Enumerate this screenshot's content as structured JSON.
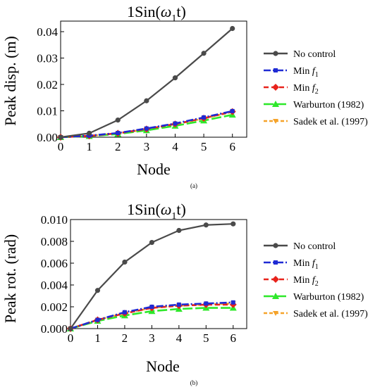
{
  "chart_data": [
    {
      "type": "line",
      "title": "1Sin(ω₁t)",
      "title_base": "1Sin(",
      "title_omega": "ω",
      "title_sub": "1",
      "title_end": "t)",
      "xlabel": "Node",
      "ylabel": "Peak disp. (m)",
      "panel_label": "(a)",
      "x": [
        0,
        1,
        2,
        3,
        4,
        5,
        6
      ],
      "xlim": [
        0,
        6.5
      ],
      "ylim": [
        0,
        0.044
      ],
      "x_ticks": [
        "0",
        "1",
        "2",
        "3",
        "4",
        "5",
        "6"
      ],
      "y_ticks": [
        {
          "value": 0,
          "label": "0.00"
        },
        {
          "value": 0.01,
          "label": "0.01"
        },
        {
          "value": 0.02,
          "label": "0.02"
        },
        {
          "value": 0.03,
          "label": "0.03"
        },
        {
          "value": 0.04,
          "label": "0.04"
        }
      ],
      "legend_position": "right",
      "series": [
        {
          "name": "No control",
          "color": "#4a4a4a",
          "dash": "",
          "marker": "circle",
          "values": [
            0,
            0.0015,
            0.0065,
            0.0138,
            0.0225,
            0.0318,
            0.0412
          ]
        },
        {
          "name": "Min f1",
          "label_base": "Min ",
          "label_italic": "f",
          "label_sub": "1",
          "color": "#1f2bd4",
          "dash": "10,3,2,3",
          "marker": "square",
          "values": [
            0,
            0.0006,
            0.0016,
            0.0033,
            0.0052,
            0.0075,
            0.0099
          ]
        },
        {
          "name": "Min f2",
          "label_base": "Min ",
          "label_italic": "f",
          "label_sub": "2",
          "color": "#e8231c",
          "dash": "7,4",
          "marker": "diamond",
          "values": [
            0,
            0.0005,
            0.0015,
            0.0031,
            0.005,
            0.0072,
            0.0097
          ]
        },
        {
          "name": "Warburton (1982)",
          "color": "#2ee82a",
          "dash": "14,4",
          "marker": "triangle",
          "values": [
            0,
            0.0004,
            0.0012,
            0.0026,
            0.0043,
            0.0063,
            0.0085
          ]
        },
        {
          "name": "Sadek et al. (1997)",
          "color": "#f5a32a",
          "dash": "5,3",
          "marker": "down-triangle",
          "values": [
            0,
            0.0005,
            0.0014,
            0.003,
            0.0049,
            0.0071,
            0.0096
          ]
        }
      ]
    },
    {
      "type": "line",
      "title": "1Sin(ω₁t)",
      "title_base": "1Sin(",
      "title_omega": "ω",
      "title_sub": "1",
      "title_end": "t)",
      "xlabel": "Node",
      "ylabel": "Peak rot. (rad)",
      "panel_label": "(b)",
      "x": [
        0,
        1,
        2,
        3,
        4,
        5,
        6
      ],
      "xlim": [
        0,
        6.5
      ],
      "ylim": [
        0,
        0.01
      ],
      "x_ticks": [
        "0",
        "1",
        "2",
        "3",
        "4",
        "5",
        "6"
      ],
      "y_ticks": [
        {
          "value": 0,
          "label": "0.000"
        },
        {
          "value": 0.002,
          "label": "0.002"
        },
        {
          "value": 0.004,
          "label": "0.004"
        },
        {
          "value": 0.006,
          "label": "0.006"
        },
        {
          "value": 0.008,
          "label": "0.008"
        },
        {
          "value": 0.01,
          "label": "0.010"
        }
      ],
      "legend_position": "right",
      "series": [
        {
          "name": "No control",
          "color": "#4a4a4a",
          "dash": "",
          "marker": "circle",
          "values": [
            0,
            0.0035,
            0.0061,
            0.0079,
            0.009,
            0.0095,
            0.0096
          ]
        },
        {
          "name": "Min f1",
          "label_base": "Min ",
          "label_italic": "f",
          "label_sub": "1",
          "color": "#1f2bd4",
          "dash": "10,3,2,3",
          "marker": "square",
          "values": [
            0,
            0.0008,
            0.0015,
            0.002,
            0.0022,
            0.0023,
            0.0024
          ]
        },
        {
          "name": "Min f2",
          "label_base": "Min ",
          "label_italic": "f",
          "label_sub": "2",
          "color": "#e8231c",
          "dash": "7,4",
          "marker": "diamond",
          "values": [
            0,
            0.0008,
            0.0014,
            0.0019,
            0.0021,
            0.0022,
            0.0022
          ]
        },
        {
          "name": "Warburton (1982)",
          "color": "#2ee82a",
          "dash": "14,4",
          "marker": "triangle",
          "values": [
            0,
            0.0007,
            0.0012,
            0.0016,
            0.0018,
            0.0019,
            0.0019
          ]
        },
        {
          "name": "Sadek et al. (1997)",
          "color": "#f5a32a",
          "dash": "5,3",
          "marker": "down-triangle",
          "values": [
            0,
            0.0008,
            0.0014,
            0.0019,
            0.0021,
            0.0022,
            0.0023
          ]
        }
      ]
    }
  ]
}
